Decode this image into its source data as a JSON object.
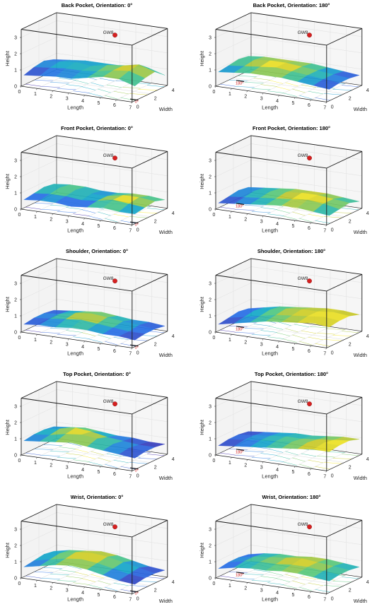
{
  "chart_data": [
    {
      "type": "surface",
      "title": "Back Pocket, Orientation: 0°",
      "angle_label": "0°",
      "xlabel": "Length",
      "ylabel": "Width",
      "zlabel": "Height",
      "x_ticks": [
        "0",
        "1",
        "2",
        "3",
        "4",
        "5",
        "6",
        "7"
      ],
      "y_ticks": [
        "0",
        "2",
        "4"
      ],
      "z_ticks": [
        "0",
        "1",
        "2",
        "3"
      ],
      "xlim": [
        0,
        7
      ],
      "ylim": [
        0,
        4
      ],
      "zlim": [
        0,
        3.5
      ],
      "gateway": {
        "label": "GW8",
        "x": 4.8,
        "y": 2,
        "z": 3.3
      },
      "surface_z": [
        [
          0.6,
          0.7,
          0.8,
          0.8,
          1.0,
          1.2,
          1.2,
          0.9
        ],
        [
          0.8,
          0.9,
          1.0,
          1.0,
          1.1,
          1.3,
          1.4,
          1.1
        ],
        [
          0.9,
          1.0,
          1.1,
          1.0,
          1.2,
          1.3,
          1.5,
          1.2
        ],
        [
          0.7,
          0.8,
          0.9,
          0.9,
          0.9,
          1.0,
          1.0,
          0.7
        ]
      ]
    },
    {
      "type": "surface",
      "title": "Back Pocket, Orientation: 180°",
      "angle_label": "180°",
      "xlabel": "Length",
      "ylabel": "Width",
      "zlabel": "Height",
      "x_ticks": [
        "0",
        "1",
        "2",
        "3",
        "4",
        "5",
        "6",
        "7"
      ],
      "y_ticks": [
        "0",
        "2",
        "4"
      ],
      "z_ticks": [
        "0",
        "1",
        "2",
        "3"
      ],
      "xlim": [
        0,
        7
      ],
      "ylim": [
        0,
        4
      ],
      "zlim": [
        0,
        3.5
      ],
      "gateway": {
        "label": "GW8",
        "x": 4.8,
        "y": 2,
        "z": 3.3
      },
      "surface_z": [
        [
          0.8,
          0.9,
          1.0,
          1.0,
          1.0,
          0.9,
          0.8,
          0.7
        ],
        [
          0.9,
          1.0,
          1.1,
          1.2,
          1.1,
          1.0,
          0.9,
          0.8
        ],
        [
          1.0,
          1.1,
          1.2,
          1.2,
          1.1,
          1.0,
          0.9,
          0.8
        ],
        [
          0.9,
          1.0,
          1.0,
          1.0,
          1.0,
          0.9,
          0.8,
          0.7
        ]
      ]
    },
    {
      "type": "surface",
      "title": "Front Pocket, Orientation: 0°",
      "angle_label": "0°",
      "xlabel": "Length",
      "ylabel": "Width",
      "zlabel": "Height",
      "x_ticks": [
        "0",
        "1",
        "2",
        "3",
        "4",
        "5",
        "6",
        "7"
      ],
      "y_ticks": [
        "0",
        "2",
        "4"
      ],
      "z_ticks": [
        "0",
        "1",
        "2",
        "3"
      ],
      "xlim": [
        0,
        7
      ],
      "ylim": [
        0,
        4
      ],
      "zlim": [
        0,
        3.5
      ],
      "gateway": {
        "label": "GW8",
        "x": 4.8,
        "y": 2,
        "z": 3.3
      },
      "surface_z": [
        [
          0.5,
          0.6,
          0.6,
          0.5,
          0.6,
          0.7,
          0.6,
          0.6
        ],
        [
          0.6,
          0.7,
          0.7,
          0.6,
          0.7,
          0.9,
          0.8,
          0.7
        ],
        [
          0.7,
          0.8,
          0.8,
          0.7,
          0.7,
          0.9,
          0.9,
          0.8
        ],
        [
          0.6,
          0.7,
          0.7,
          0.6,
          0.6,
          0.7,
          0.7,
          0.6
        ]
      ]
    },
    {
      "type": "surface",
      "title": "Front Pocket, Orientation: 180°",
      "angle_label": "180°",
      "xlabel": "Length",
      "ylabel": "Width",
      "zlabel": "Height",
      "x_ticks": [
        "0",
        "1",
        "2",
        "3",
        "4",
        "5",
        "6",
        "7"
      ],
      "y_ticks": [
        "0",
        "2",
        "4"
      ],
      "z_ticks": [
        "0",
        "1",
        "2",
        "3"
      ],
      "xlim": [
        0,
        7
      ],
      "ylim": [
        0,
        4
      ],
      "zlim": [
        0,
        3.5
      ],
      "gateway": {
        "label": "GW8",
        "x": 4.8,
        "y": 2,
        "z": 3.3
      },
      "surface_z": [
        [
          0.3,
          0.4,
          0.5,
          0.6,
          0.7,
          0.7,
          0.6,
          0.5
        ],
        [
          0.4,
          0.5,
          0.6,
          0.7,
          0.8,
          0.9,
          0.8,
          0.6
        ],
        [
          0.5,
          0.6,
          0.7,
          0.8,
          0.9,
          0.9,
          0.8,
          0.7
        ],
        [
          0.4,
          0.5,
          0.6,
          0.7,
          0.7,
          0.7,
          0.6,
          0.5
        ]
      ]
    },
    {
      "type": "surface",
      "title": "Shoulder, Orientation: 0°",
      "angle_label": "0°",
      "xlabel": "Length",
      "ylabel": "Width",
      "zlabel": "Height",
      "x_ticks": [
        "0",
        "1",
        "2",
        "3",
        "4",
        "5",
        "6",
        "7"
      ],
      "y_ticks": [
        "0",
        "2",
        "4"
      ],
      "z_ticks": [
        "0",
        "1",
        "2",
        "3"
      ],
      "xlim": [
        0,
        7
      ],
      "ylim": [
        0,
        4
      ],
      "zlim": [
        0,
        3.5
      ],
      "gateway": {
        "label": "GW8",
        "x": 4.8,
        "y": 2,
        "z": 3.3
      },
      "surface_z": [
        [
          0.4,
          0.5,
          0.5,
          0.6,
          0.6,
          0.5,
          0.5,
          0.4
        ],
        [
          0.5,
          0.6,
          0.7,
          0.8,
          0.7,
          0.6,
          0.5,
          0.5
        ],
        [
          0.5,
          0.6,
          0.8,
          0.9,
          0.8,
          0.7,
          0.6,
          0.5
        ],
        [
          0.4,
          0.5,
          0.6,
          0.7,
          0.6,
          0.5,
          0.5,
          0.4
        ]
      ]
    },
    {
      "type": "surface",
      "title": "Shoulder, Orientation: 180°",
      "angle_label": "180°",
      "xlabel": "Length",
      "ylabel": "Width",
      "zlabel": "Height",
      "x_ticks": [
        "0",
        "1",
        "2",
        "3",
        "4",
        "5",
        "6",
        "7"
      ],
      "y_ticks": [
        "0",
        "2",
        "4"
      ],
      "z_ticks": [
        "0",
        "1",
        "2",
        "3"
      ],
      "xlim": [
        0,
        7
      ],
      "ylim": [
        0,
        4
      ],
      "zlim": [
        0,
        3.5
      ],
      "gateway": {
        "label": "GW8",
        "x": 4.8,
        "y": 2,
        "z": 3.3
      },
      "surface_z": [
        [
          0.4,
          0.6,
          0.8,
          1.0,
          1.1,
          1.2,
          1.3,
          1.2
        ],
        [
          0.5,
          0.7,
          0.9,
          1.1,
          1.2,
          1.3,
          1.4,
          1.3
        ],
        [
          0.6,
          0.8,
          1.0,
          1.2,
          1.3,
          1.3,
          1.4,
          1.3
        ],
        [
          0.5,
          0.7,
          0.9,
          1.0,
          1.1,
          1.2,
          1.2,
          1.1
        ]
      ]
    },
    {
      "type": "surface",
      "title": "Top Pocket, Orientation: 0°",
      "angle_label": "0°",
      "xlabel": "Length",
      "ylabel": "Width",
      "zlabel": "Height",
      "x_ticks": [
        "0",
        "1",
        "2",
        "3",
        "4",
        "5",
        "6",
        "7"
      ],
      "y_ticks": [
        "0",
        "2",
        "4"
      ],
      "z_ticks": [
        "0",
        "1",
        "2",
        "3"
      ],
      "xlim": [
        0,
        7
      ],
      "ylim": [
        0,
        4
      ],
      "zlim": [
        0,
        3.5
      ],
      "gateway": {
        "label": "GW8",
        "x": 4.8,
        "y": 2,
        "z": 3.3
      },
      "surface_z": [
        [
          0.8,
          0.9,
          1.0,
          1.1,
          1.0,
          0.9,
          0.8,
          0.7
        ],
        [
          0.9,
          1.0,
          1.2,
          1.3,
          1.2,
          1.0,
          0.9,
          0.8
        ],
        [
          0.9,
          1.1,
          1.3,
          1.2,
          1.0,
          0.9,
          0.8,
          0.8
        ],
        [
          0.8,
          0.9,
          1.0,
          0.9,
          0.8,
          0.8,
          0.7,
          0.7
        ]
      ]
    },
    {
      "type": "surface",
      "title": "Top Pocket, Orientation: 180°",
      "angle_label": "180°",
      "xlabel": "Length",
      "ylabel": "Width",
      "zlabel": "Height",
      "x_ticks": [
        "0",
        "1",
        "2",
        "3",
        "4",
        "5",
        "6",
        "7"
      ],
      "y_ticks": [
        "0",
        "2",
        "4"
      ],
      "z_ticks": [
        "0",
        "1",
        "2",
        "3"
      ],
      "xlim": [
        0,
        7
      ],
      "ylim": [
        0,
        4
      ],
      "zlim": [
        0,
        3.5
      ],
      "gateway": {
        "label": "GW8",
        "x": 4.8,
        "y": 2,
        "z": 3.3
      },
      "surface_z": [
        [
          0.5,
          0.6,
          0.7,
          0.8,
          0.9,
          1.0,
          1.1,
          1.1
        ],
        [
          0.6,
          0.7,
          0.8,
          0.9,
          1.0,
          1.1,
          1.2,
          1.2
        ],
        [
          0.6,
          0.7,
          0.8,
          0.9,
          0.9,
          1.0,
          1.1,
          1.2
        ],
        [
          0.5,
          0.6,
          0.7,
          0.8,
          0.8,
          0.9,
          1.0,
          1.0
        ]
      ]
    },
    {
      "type": "surface",
      "title": "Wrist, Orientation: 0°",
      "angle_label": "0°",
      "xlabel": "Length",
      "ylabel": "Width",
      "zlabel": "Height",
      "x_ticks": [
        "0",
        "1",
        "2",
        "3",
        "4",
        "5",
        "6",
        "7"
      ],
      "y_ticks": [
        "0",
        "2",
        "4"
      ],
      "z_ticks": [
        "0",
        "1",
        "2",
        "3"
      ],
      "xlim": [
        0,
        7
      ],
      "ylim": [
        0,
        4
      ],
      "zlim": [
        0,
        3.5
      ],
      "gateway": {
        "label": "GW8",
        "x": 4.8,
        "y": 2,
        "z": 3.3
      },
      "surface_z": [
        [
          0.6,
          0.8,
          1.0,
          1.1,
          1.0,
          0.8,
          0.6,
          0.5
        ],
        [
          0.7,
          0.9,
          1.1,
          1.2,
          1.1,
          0.9,
          0.7,
          0.6
        ],
        [
          0.8,
          1.0,
          1.2,
          1.3,
          1.2,
          1.0,
          0.8,
          0.6
        ],
        [
          0.7,
          0.9,
          1.0,
          1.1,
          1.0,
          0.8,
          0.6,
          0.5
        ]
      ]
    },
    {
      "type": "surface",
      "title": "Wrist, Orientation: 180°",
      "angle_label": "180°",
      "xlabel": "Length",
      "ylabel": "Width",
      "zlabel": "Height",
      "x_ticks": [
        "0",
        "1",
        "2",
        "3",
        "4",
        "5",
        "6",
        "7"
      ],
      "y_ticks": [
        "0",
        "2",
        "4"
      ],
      "z_ticks": [
        "0",
        "1",
        "2",
        "3"
      ],
      "xlim": [
        0,
        7
      ],
      "ylim": [
        0,
        4
      ],
      "zlim": [
        0,
        3.5
      ],
      "gateway": {
        "label": "GW8",
        "x": 4.8,
        "y": 2,
        "z": 3.3
      },
      "surface_z": [
        [
          0.5,
          0.7,
          0.8,
          0.8,
          0.9,
          0.9,
          0.8,
          0.7
        ],
        [
          0.6,
          0.8,
          0.9,
          0.9,
          1.0,
          1.0,
          0.9,
          0.8
        ],
        [
          0.6,
          0.8,
          0.9,
          1.0,
          1.1,
          1.0,
          0.9,
          0.8
        ],
        [
          0.5,
          0.7,
          0.8,
          0.8,
          0.9,
          0.9,
          0.8,
          0.7
        ]
      ]
    }
  ],
  "colors": {
    "frame": "#1a1a1a",
    "grid": "#e3e3e3",
    "gateway": "#d62020",
    "contour_low": "#3b2cb4",
    "contour_high": "#f2e022"
  }
}
